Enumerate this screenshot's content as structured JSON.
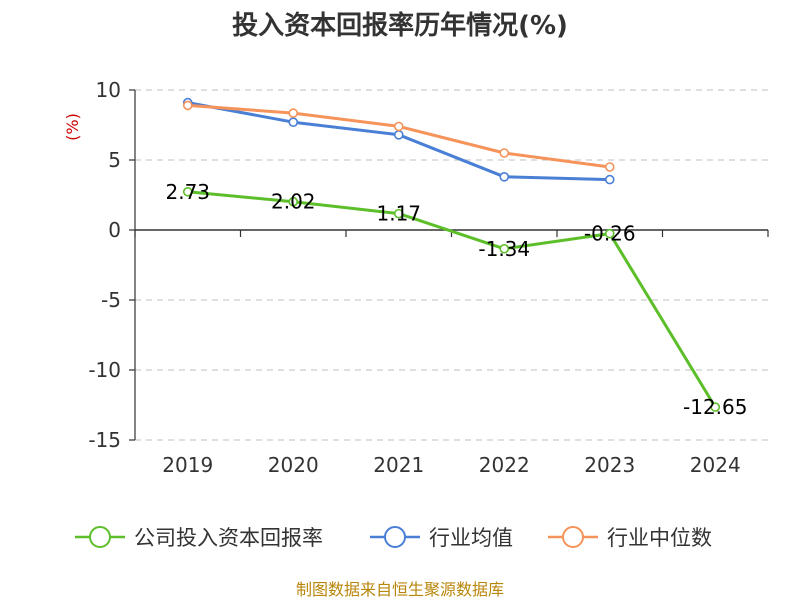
{
  "chart_data": {
    "type": "line",
    "title": "投入资本回报率历年情况(%)",
    "ylabel": "(%)",
    "categories": [
      "2019",
      "2020",
      "2021",
      "2022",
      "2023",
      "2024"
    ],
    "ylim": [
      -15,
      10
    ],
    "yticks": [
      10,
      5,
      0,
      -5,
      -10,
      -15
    ],
    "grid": true,
    "legend_position": "bottom",
    "series": [
      {
        "name": "公司投入资本回报率",
        "color": "#5cbf2a",
        "values": [
          2.73,
          2.02,
          1.17,
          -1.34,
          -0.26,
          -12.65
        ],
        "labels": [
          "2.73",
          "2.02",
          "1.17",
          "-1.34",
          "-0.26",
          "-12.65"
        ]
      },
      {
        "name": "行业均值",
        "color": "#4a7fd6",
        "values": [
          9.1,
          7.7,
          6.8,
          3.8,
          3.6,
          null
        ]
      },
      {
        "name": "行业中位数",
        "color": "#f5935a",
        "values": [
          8.9,
          8.35,
          7.4,
          5.5,
          4.5,
          null
        ]
      }
    ],
    "source": "制图数据来自恒生聚源数据库"
  }
}
